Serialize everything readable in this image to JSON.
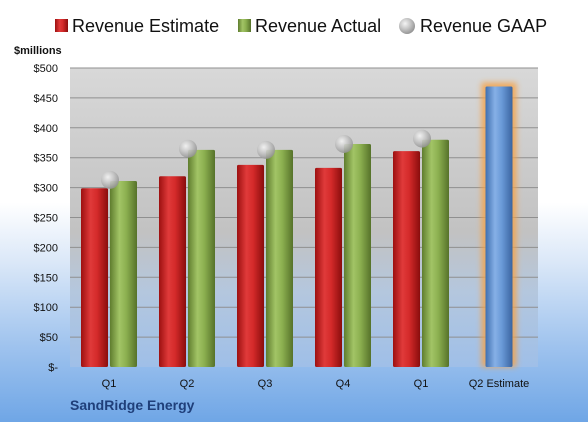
{
  "company": "SandRidge Energy",
  "chart_data": {
    "type": "bar",
    "ylabel": "$millions",
    "ylim": [
      0,
      500
    ],
    "yticks": [
      0,
      50,
      100,
      150,
      200,
      250,
      300,
      350,
      400,
      450,
      500
    ],
    "ytick_labels": [
      "$-",
      "$50",
      "$100",
      "$150",
      "$200",
      "$250",
      "$300",
      "$350",
      "$400",
      "$450",
      "$500"
    ],
    "categories": [
      "Q1",
      "Q2",
      "Q3",
      "Q4",
      "Q1",
      "Q2 Estimate"
    ],
    "legend_position": "top",
    "grid": true,
    "series": [
      {
        "name": "Revenue Estimate",
        "kind": "bar",
        "color": "#d42a2a",
        "values": [
          299,
          319,
          338,
          333,
          361,
          null
        ]
      },
      {
        "name": "Revenue Actual",
        "kind": "bar",
        "color": "#8cb050",
        "values": [
          311,
          363,
          363,
          373,
          380,
          null
        ]
      },
      {
        "name": "Revenue GAAP",
        "kind": "marker",
        "color": "#b8b8b8",
        "values": [
          313,
          365,
          363,
          373,
          382,
          null
        ]
      }
    ],
    "forecast": {
      "category_index": 5,
      "value": 469,
      "color": "#5f94d6",
      "glow_color": "#f5a34a"
    }
  }
}
